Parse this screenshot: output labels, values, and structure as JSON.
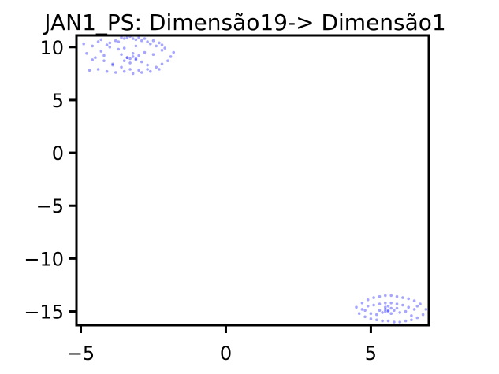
{
  "chart_data": {
    "type": "scatter",
    "title": "JAN1_PS: Dimensão19-> Dimensão1",
    "xlabel": "",
    "ylabel": "",
    "xlim": [
      -5.15,
      7.0
    ],
    "ylim": [
      -16.3,
      11.1
    ],
    "xticks": [
      -5,
      0,
      5
    ],
    "xtick_labels": [
      "−5",
      "0",
      "5"
    ],
    "yticks": [
      10,
      5,
      0,
      -5,
      -10,
      -15
    ],
    "ytick_labels": [
      "10",
      "5",
      "0",
      "−5",
      "−10",
      "−15"
    ],
    "grid": false,
    "point_color": "#0000ff",
    "clusters": [
      {
        "x": [
          -4.9,
          -4.6,
          -4.4,
          -4.3,
          -4.1,
          -4.0,
          -3.8,
          -3.7,
          -3.6,
          -3.5,
          -3.4,
          -3.3,
          -3.2,
          -3.1,
          -3.0,
          -2.9,
          -2.8,
          -2.7,
          -2.6,
          -2.5,
          -2.4,
          -2.3,
          -2.2,
          -2.1,
          -4.8,
          -4.5,
          -4.2,
          -3.9,
          -3.6,
          -3.3,
          -3.0,
          -2.7,
          -2.4,
          -2.2,
          -2.0,
          -1.9,
          -4.7,
          -4.4,
          -4.1,
          -3.8,
          -3.5,
          -3.2,
          -2.9,
          -2.6,
          -2.3,
          -3.4,
          -3.3,
          -3.2,
          -3.1,
          -3.5,
          -3.0,
          -3.6,
          -2.9,
          -3.3,
          -3.2,
          -3.4,
          -3.1,
          -4.3,
          -3.7,
          -2.8,
          -2.5,
          -4.0,
          -3.9,
          -2.2,
          -4.6,
          -1.8,
          -3.1,
          -3.5,
          -2.7,
          -4.2
        ],
        "y": [
          10.3,
          10.1,
          10.5,
          10.7,
          10.2,
          10.4,
          10.6,
          10.5,
          10.9,
          10.8,
          10.9,
          11.0,
          10.8,
          10.7,
          10.9,
          10.6,
          10.8,
          10.5,
          10.3,
          10.6,
          10.1,
          10.4,
          10.2,
          9.9,
          9.4,
          9.0,
          8.7,
          8.3,
          8.1,
          7.9,
          7.8,
          7.9,
          8.1,
          8.4,
          8.7,
          9.1,
          7.8,
          7.9,
          7.7,
          7.6,
          7.7,
          7.5,
          7.6,
          7.7,
          7.9,
          9.0,
          8.9,
          9.1,
          8.8,
          8.7,
          9.2,
          9.3,
          8.6,
          8.5,
          9.4,
          9.0,
          8.9,
          9.6,
          9.8,
          9.5,
          9.3,
          10.0,
          8.4,
          9.7,
          8.8,
          9.5,
          10.1,
          9.9,
          8.3,
          9.2
        ]
      },
      {
        "x": [
          4.5,
          4.7,
          4.9,
          5.1,
          5.3,
          5.5,
          5.7,
          5.9,
          6.1,
          6.3,
          6.5,
          6.7,
          6.9,
          6.8,
          6.6,
          6.4,
          6.2,
          6.0,
          5.8,
          5.6,
          5.4,
          5.2,
          5.0,
          4.8,
          4.6,
          4.7,
          4.9,
          5.1,
          5.3,
          5.5,
          5.7,
          5.9,
          6.1,
          6.3,
          6.5,
          5.5,
          5.6,
          5.7,
          5.6,
          5.5,
          5.8,
          5.4,
          5.6,
          5.7,
          5.5,
          5.9,
          5.3,
          6.0,
          5.2,
          6.2,
          4.8,
          6.6,
          5.0,
          6.4
        ],
        "y": [
          -14.6,
          -14.2,
          -13.9,
          -13.7,
          -13.6,
          -13.5,
          -13.5,
          -13.6,
          -13.7,
          -13.8,
          -14.0,
          -14.3,
          -14.8,
          -15.3,
          -15.6,
          -15.8,
          -15.9,
          -16.0,
          -16.0,
          -15.9,
          -15.9,
          -15.8,
          -15.7,
          -15.5,
          -15.2,
          -14.8,
          -14.5,
          -14.4,
          -14.3,
          -14.2,
          -14.2,
          -14.3,
          -14.4,
          -14.6,
          -14.8,
          -14.8,
          -14.9,
          -14.7,
          -15.0,
          -14.6,
          -14.9,
          -15.1,
          -14.5,
          -15.2,
          -15.0,
          -14.7,
          -14.9,
          -15.1,
          -15.3,
          -15.0,
          -14.9,
          -14.5,
          -15.2,
          -15.4
        ]
      }
    ]
  }
}
